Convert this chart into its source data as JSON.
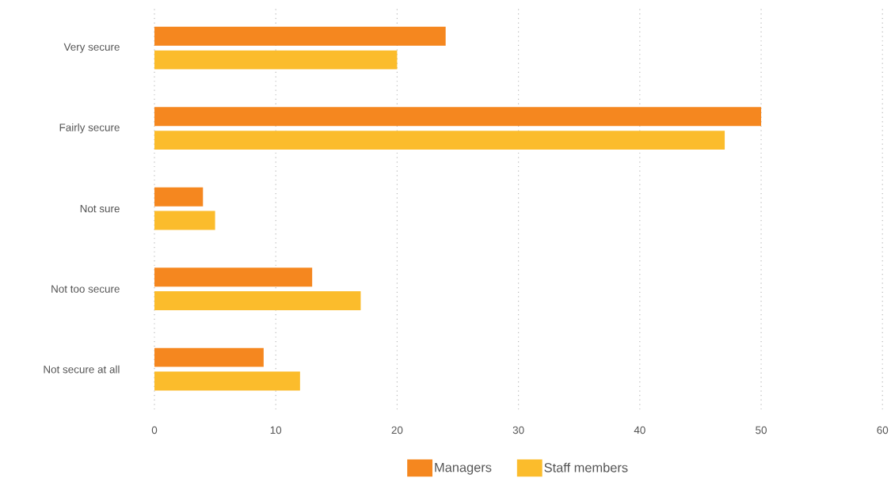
{
  "chart_data": {
    "type": "bar",
    "orientation": "horizontal",
    "categories": [
      "Very secure",
      "Fairly secure",
      "Not sure",
      "Not too secure",
      "Not secure at all"
    ],
    "series": [
      {
        "name": "Managers",
        "color": "#f5871f",
        "values": [
          24,
          50,
          4,
          13,
          9
        ]
      },
      {
        "name": "Staff members",
        "color": "#fbbc2c",
        "values": [
          20,
          47,
          5,
          17,
          12
        ]
      }
    ],
    "xlim": [
      0,
      60
    ],
    "xticks": [
      0,
      10,
      20,
      30,
      40,
      50,
      60
    ],
    "grid": "x",
    "legend": "bottom"
  }
}
